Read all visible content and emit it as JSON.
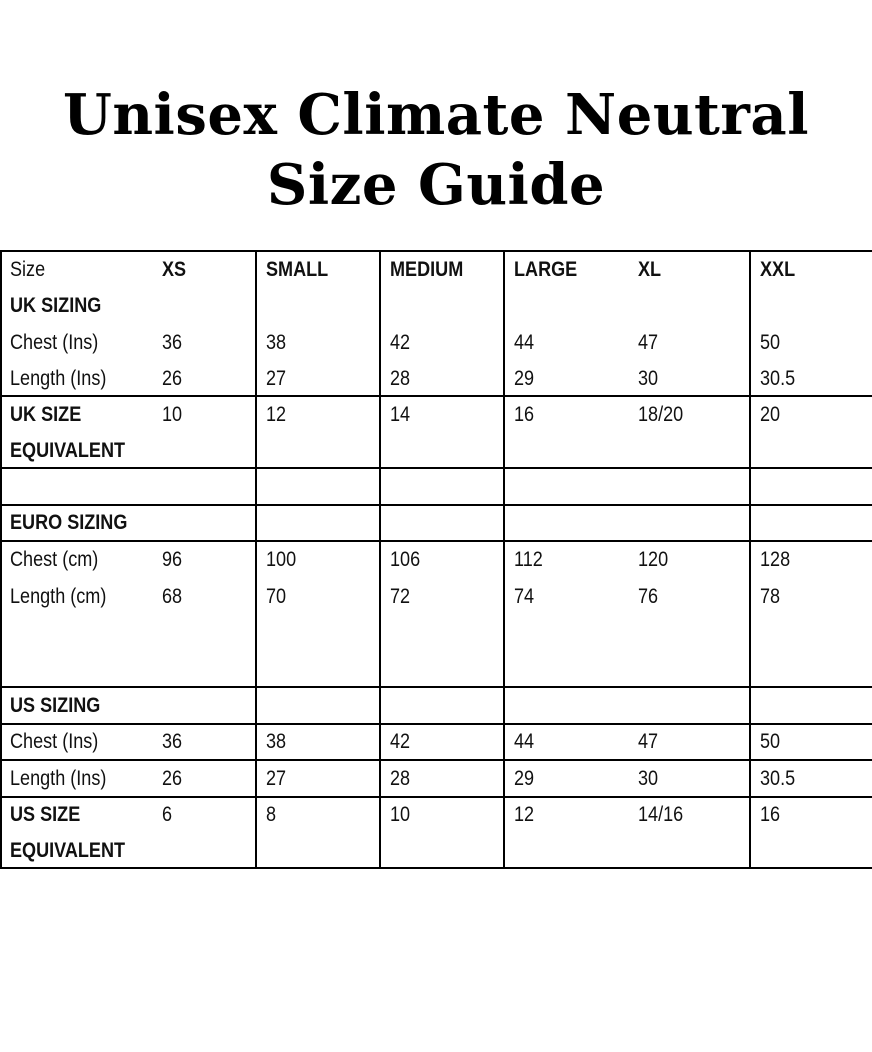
{
  "title": {
    "line1": "Unisex Climate Neutral",
    "line2": "Size Guide"
  },
  "table": {
    "header": {
      "label": "Size",
      "sizes": [
        "XS",
        "SMALL",
        "MEDIUM",
        "LARGE",
        "XL",
        "XXL"
      ]
    },
    "uk": {
      "section": "UK SIZING",
      "chest_label": "Chest (Ins)",
      "chest": [
        "36",
        "38",
        "42",
        "44",
        "47",
        "50"
      ],
      "length_label": "Length (Ins)",
      "length": [
        "26",
        "27",
        "28",
        "29",
        "30",
        "30.5"
      ],
      "equiv_label_1": "UK SIZE",
      "equiv_label_2": "EQUIVALENT",
      "equiv": [
        "10",
        "12",
        "14",
        "16",
        "18/20",
        "20"
      ]
    },
    "euro": {
      "section": "EURO SIZING",
      "chest_label": "Chest (cm)",
      "chest": [
        "96",
        "100",
        "106",
        "112",
        "120",
        "128"
      ],
      "length_label": "Length (cm)",
      "length": [
        "68",
        "70",
        "72",
        "74",
        "76",
        "78"
      ]
    },
    "us": {
      "section": "US SIZING",
      "chest_label": "Chest (Ins)",
      "chest": [
        "36",
        "38",
        "42",
        "44",
        "47",
        "50"
      ],
      "length_label": "Length (Ins)",
      "length": [
        "26",
        "27",
        "28",
        "29",
        "30",
        "30.5"
      ],
      "equiv_label_1": "US SIZE",
      "equiv_label_2": "EQUIVALENT",
      "equiv": [
        "6",
        "8",
        "10",
        "12",
        "14/16",
        "16"
      ]
    }
  }
}
